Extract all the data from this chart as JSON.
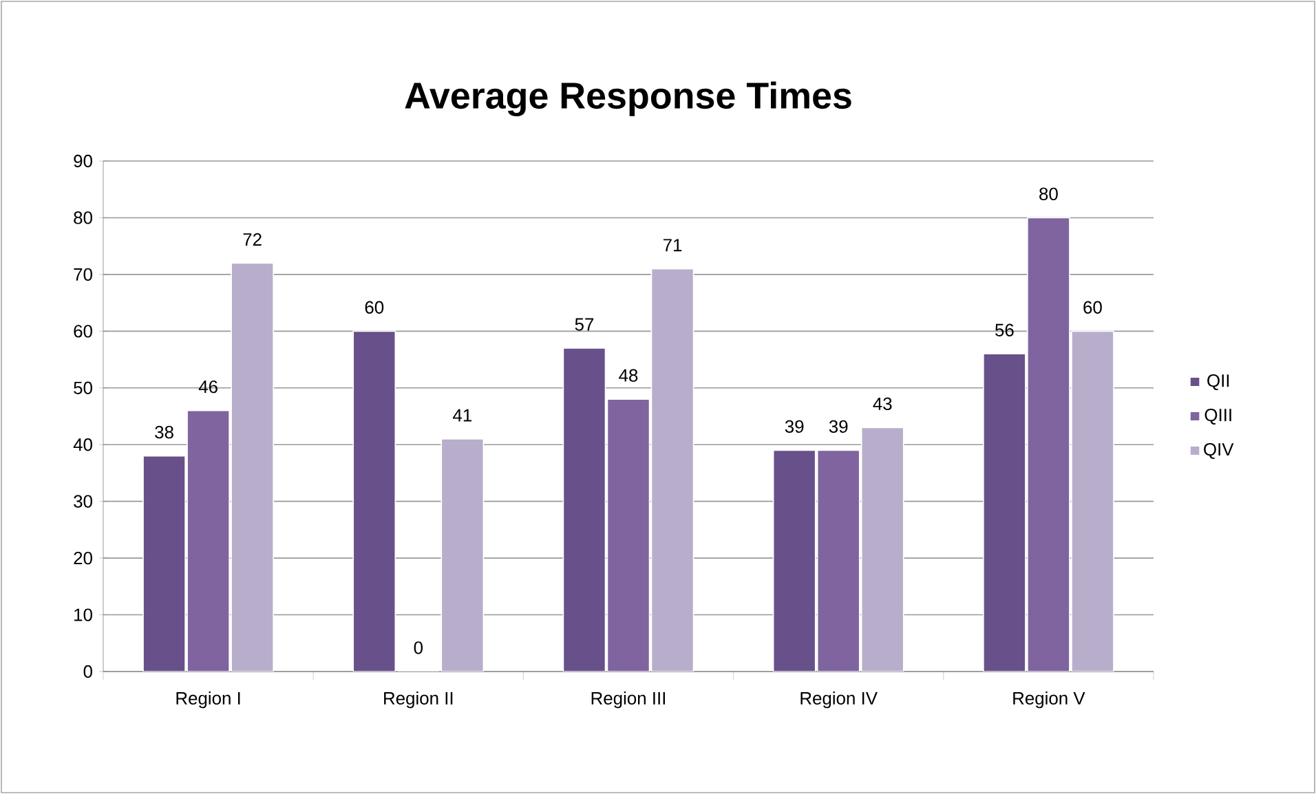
{
  "chart_data": {
    "type": "bar",
    "title": "Average Response Times",
    "categories": [
      "Region I",
      "Region II",
      "Region III",
      "Region IV",
      "Region V"
    ],
    "series": [
      {
        "name": "QII",
        "color": "#68508a",
        "values": [
          38,
          60,
          57,
          39,
          56
        ]
      },
      {
        "name": "QIII",
        "color": "#7f64a0",
        "values": [
          46,
          0,
          48,
          39,
          80
        ]
      },
      {
        "name": "QIV",
        "color": "#b8aecb",
        "values": [
          72,
          41,
          71,
          43,
          60
        ]
      }
    ],
    "ylim": [
      0,
      90
    ],
    "yticks": [
      0,
      10,
      20,
      30,
      40,
      50,
      60,
      70,
      80,
      90
    ],
    "grid": "y",
    "legend": "right",
    "data_labels": true
  }
}
